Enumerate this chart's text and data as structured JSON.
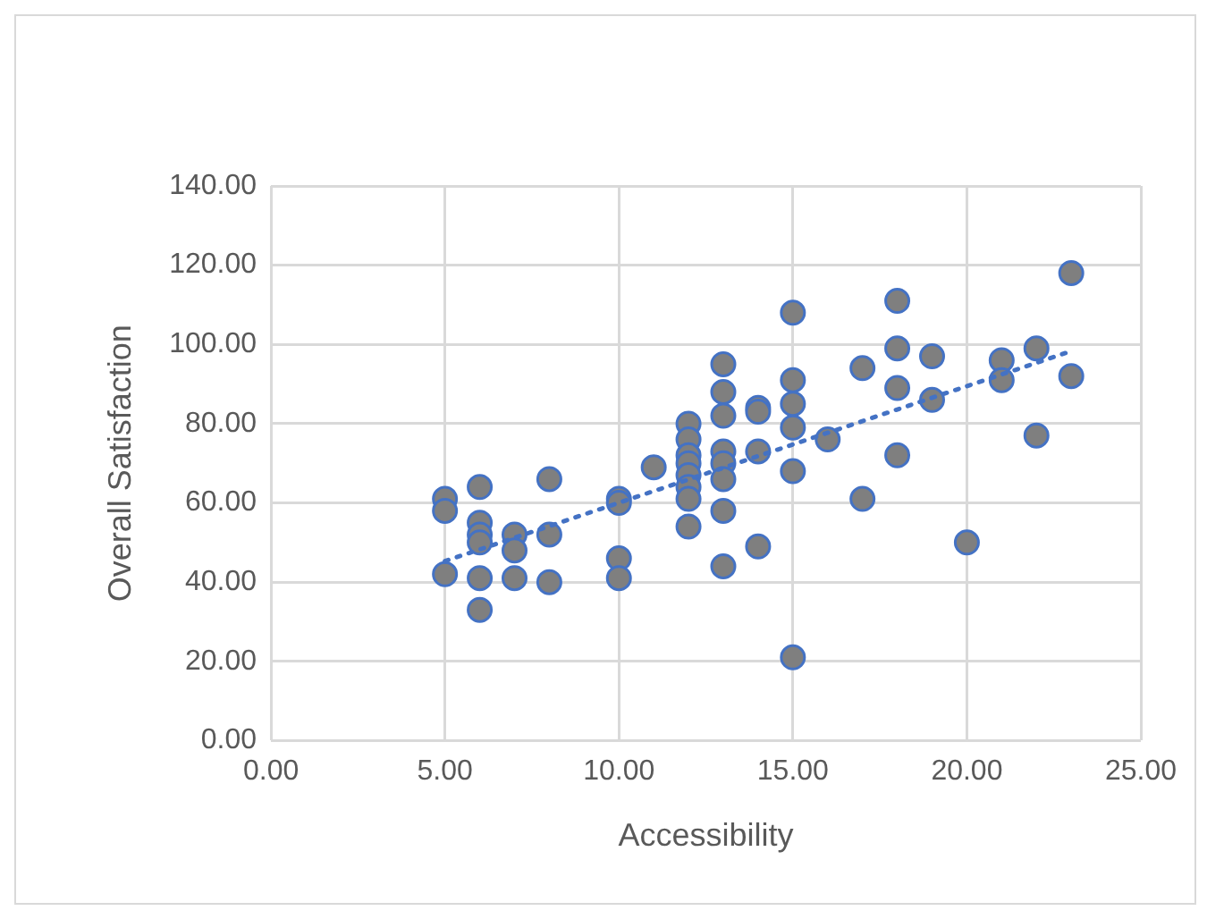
{
  "chart_data": {
    "type": "scatter",
    "xlabel": "Accessibility",
    "ylabel": "Overall Satisfaction",
    "xlim": [
      0,
      25
    ],
    "xticks": [
      {
        "value": 0,
        "label": "0.00"
      },
      {
        "value": 5,
        "label": "5.00"
      },
      {
        "value": 10,
        "label": "10.00"
      },
      {
        "value": 15,
        "label": "15.00"
      },
      {
        "value": 20,
        "label": "20.00"
      },
      {
        "value": 25,
        "label": "25.00"
      }
    ],
    "ylim": [
      0,
      140
    ],
    "yticks": [
      {
        "value": 0,
        "label": "0.00"
      },
      {
        "value": 20,
        "label": "20.00"
      },
      {
        "value": 40,
        "label": "40.00"
      },
      {
        "value": 60,
        "label": "60.00"
      },
      {
        "value": 80,
        "label": "80.00"
      },
      {
        "value": 100,
        "label": "100.00"
      },
      {
        "value": 120,
        "label": "120.00"
      },
      {
        "value": 140,
        "label": "140.00"
      }
    ],
    "grid": true,
    "legend": false,
    "marker": "circle",
    "series": [
      {
        "type": "scatter",
        "color": "#7f7f7f",
        "x": [
          5,
          5,
          5,
          6,
          6,
          6,
          6,
          6,
          6,
          7,
          7,
          7,
          8,
          8,
          8,
          10,
          10,
          10,
          10,
          11,
          12,
          12,
          12,
          12,
          12,
          12,
          12,
          12,
          13,
          13,
          13,
          13,
          13,
          13,
          13,
          13,
          14,
          14,
          14,
          14,
          15,
          15,
          15,
          15,
          15,
          15,
          16,
          17,
          17,
          18,
          18,
          18,
          18,
          19,
          19,
          20,
          21,
          21,
          22,
          22,
          23,
          23
        ],
        "values": [
          61,
          58,
          42,
          64,
          55,
          52,
          50,
          41,
          33,
          52,
          48,
          41,
          66,
          52,
          40,
          61,
          60,
          46,
          41,
          69,
          80,
          76,
          72,
          70,
          67,
          64,
          61,
          54,
          95,
          88,
          82,
          73,
          70,
          66,
          58,
          44,
          84,
          83,
          73,
          49,
          108,
          91,
          85,
          79,
          68,
          21,
          76,
          94,
          61,
          111,
          99,
          89,
          72,
          97,
          86,
          50,
          96,
          91,
          99,
          77,
          118,
          92
        ]
      },
      {
        "type": "line",
        "color": "#4472c4",
        "line_style": "dotted",
        "marker": "none",
        "x": [
          5,
          23
        ],
        "values": [
          45.3,
          98.3
        ]
      }
    ]
  }
}
